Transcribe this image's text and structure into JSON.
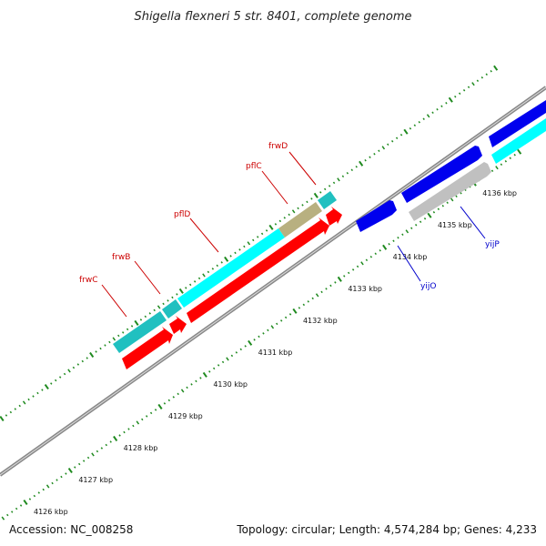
{
  "title": "Shigella flexneri 5 str. 8401, complete genome",
  "footer": {
    "accession": "Accession: NC_008258",
    "summary": "Topology: circular; Length: 4,574,284 bp; Genes: 4,233"
  },
  "colors": {
    "backbone": "#888888",
    "ticks": "#1f8a1f",
    "forward_label": "#cc0000",
    "reverse_label": "#0000cc",
    "red_gene": "#ff0000",
    "cyan_gene": "#00ffff",
    "teal_gene": "#20c0c0",
    "khaki_gene": "#b8b080",
    "blue_gene": "#0000ee",
    "gray_gene": "#c0c0c0"
  },
  "kbp_ticks": [
    {
      "kbp": 4126,
      "label": "4126 kbp"
    },
    {
      "kbp": 4127,
      "label": "4127 kbp"
    },
    {
      "kbp": 4128,
      "label": "4128 kbp"
    },
    {
      "kbp": 4129,
      "label": "4129 kbp"
    },
    {
      "kbp": 4130,
      "label": "4130 kbp"
    },
    {
      "kbp": 4131,
      "label": "4131 kbp"
    },
    {
      "kbp": 4132,
      "label": "4132 kbp"
    },
    {
      "kbp": 4133,
      "label": "4133 kbp"
    },
    {
      "kbp": 4134,
      "label": "4134 kbp"
    },
    {
      "kbp": 4135,
      "label": "4135 kbp"
    },
    {
      "kbp": 4136,
      "label": "4136 kbp"
    }
  ],
  "gene_labels": [
    {
      "name": "frwC",
      "kind": "forward"
    },
    {
      "name": "frwB",
      "kind": "forward"
    },
    {
      "name": "pflD",
      "kind": "forward"
    },
    {
      "name": "pflC",
      "kind": "forward"
    },
    {
      "name": "frwD",
      "kind": "forward"
    },
    {
      "name": "yijO",
      "kind": "reverse"
    },
    {
      "name": "yijP",
      "kind": "reverse"
    }
  ]
}
